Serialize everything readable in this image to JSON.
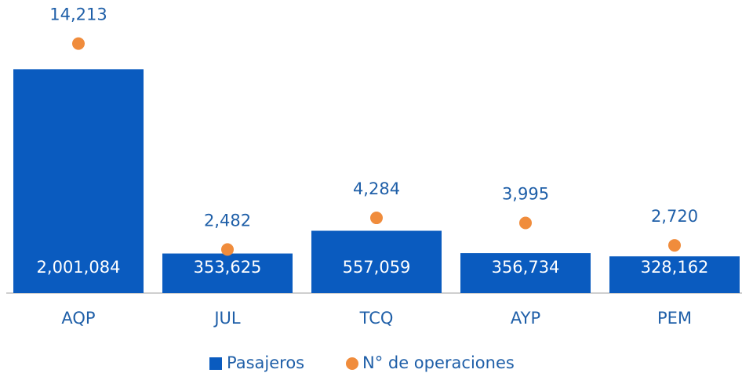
{
  "chart_data": {
    "type": "bar",
    "categories": [
      "AQP",
      "JUL",
      "TCQ",
      "AYP",
      "PEM"
    ],
    "series": [
      {
        "name": "Pasajeros",
        "type": "bar",
        "color": "#0a5bbf",
        "values": [
          2001084,
          353625,
          557059,
          356734,
          328162
        ],
        "value_labels": [
          "2,001,084",
          "353,625",
          "557,059",
          "356,734",
          "328,162"
        ]
      },
      {
        "name": "N° de operaciones",
        "type": "scatter",
        "color": "#f08c3c",
        "axis": "y2",
        "values": [
          14213,
          2482,
          4284,
          3995,
          2720
        ],
        "value_labels": [
          "14,213",
          "2,482",
          "4,284",
          "3,995",
          "2,720"
        ]
      }
    ],
    "ylim": [
      0,
      2550000
    ],
    "y2lim": [
      0,
      16250
    ],
    "legend": "bottom"
  }
}
